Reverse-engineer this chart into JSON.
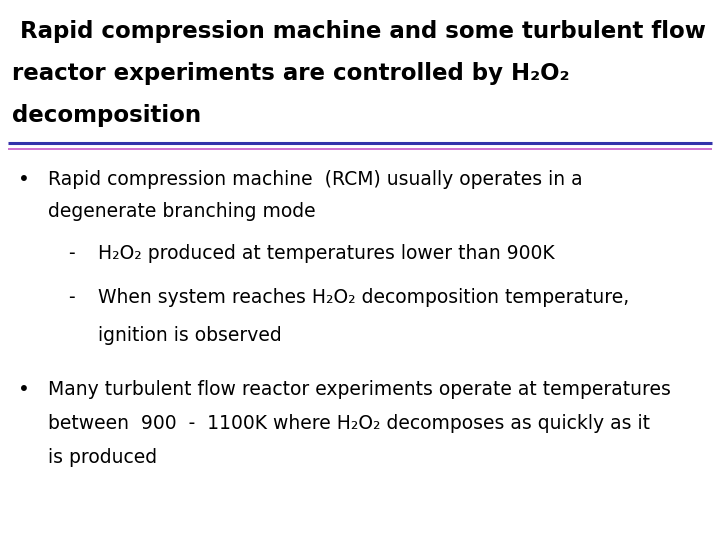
{
  "bg_color": "#ffffff",
  "title_line1": " Rapid compression machine and some turbulent flow",
  "title_line2": "reactor experiments are controlled by H₂O₂",
  "title_line3": "decomposition",
  "title_fontsize": 16.5,
  "separator_color1": "#3333aa",
  "separator_color2": "#cc66cc",
  "bullet1_line1": "Rapid compression machine  (RCM) usually operates in a",
  "bullet1_line2": "degenerate branching mode",
  "sub_bullet1": "H₂O₂ produced at temperatures lower than 900K",
  "sub_bullet2_line1": "When system reaches H₂O₂ decomposition temperature,",
  "sub_bullet2_line2": "ignition is observed",
  "bullet2_line1": "Many turbulent flow reactor experiments operate at temperatures",
  "bullet2_line2": "between  900  -  1100K where H₂O₂ decomposes as quickly as it",
  "bullet2_line3": "is produced",
  "body_fontsize": 13.5,
  "body_color": "#000000"
}
